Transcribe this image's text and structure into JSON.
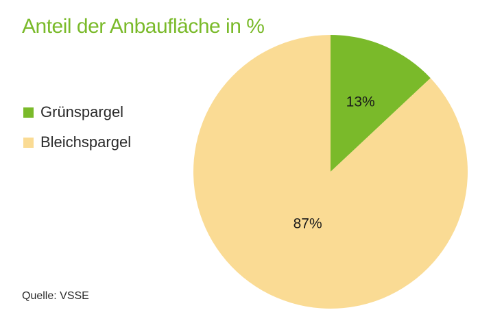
{
  "chart_data": {
    "type": "pie",
    "title": "Anteil der Anbaufläche in %",
    "categories": [
      "Grünspargel",
      "Bleichspargel"
    ],
    "values": [
      13,
      87
    ],
    "labels": [
      "13%",
      "87%"
    ],
    "colors": [
      "#7aba2a",
      "#fadb94"
    ],
    "legend_position": "left",
    "start_angle_deg": 0,
    "direction": "clockwise"
  },
  "source": "Quelle: VSSE"
}
